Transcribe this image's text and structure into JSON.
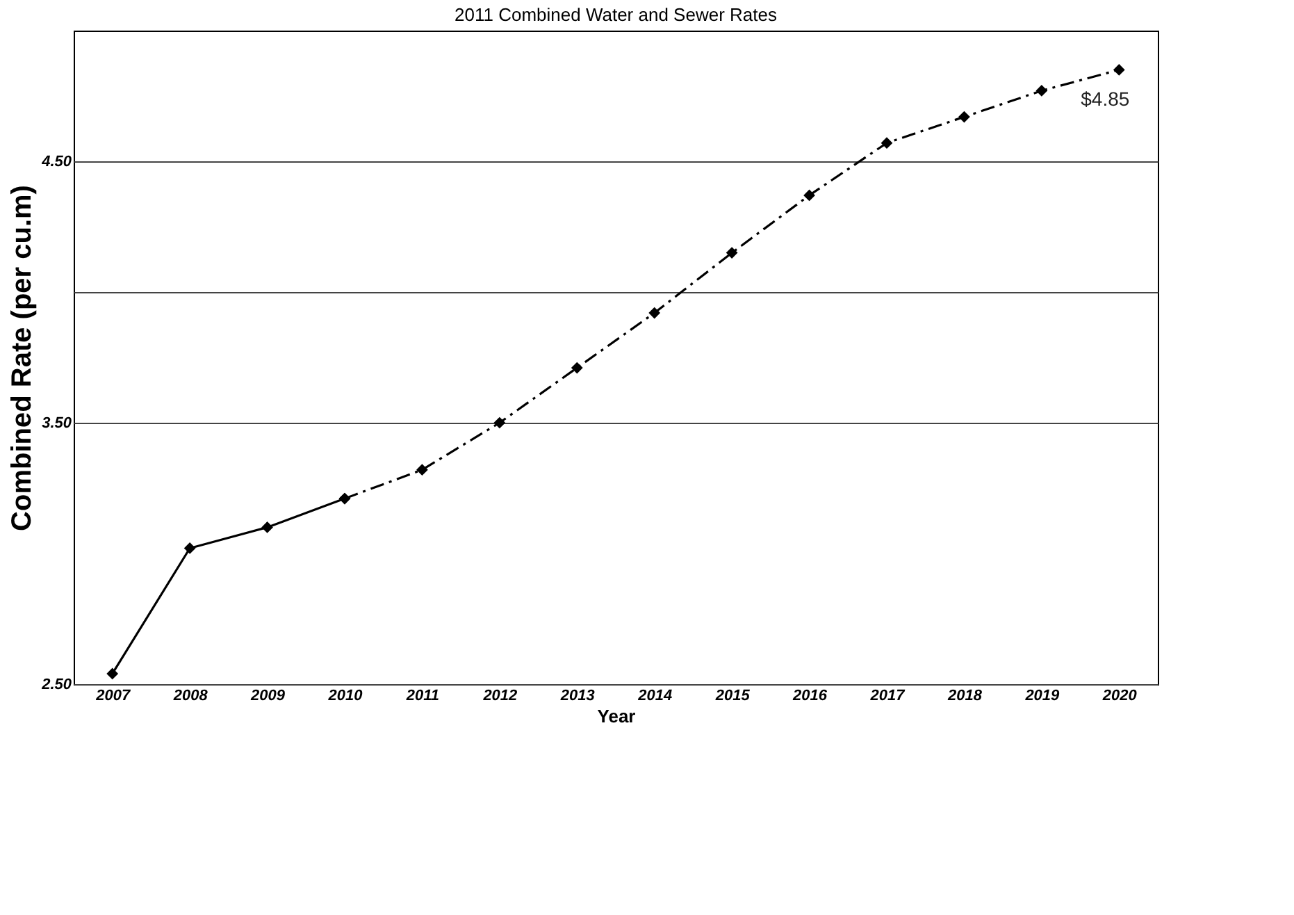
{
  "chart_data": {
    "type": "line",
    "title": "2011 Combined Water and Sewer Rates",
    "xlabel": "Year",
    "ylabel": "Combined Rate (per cu.m)",
    "categories": [
      "2007",
      "2008",
      "2009",
      "2010",
      "2011",
      "2012",
      "2013",
      "2014",
      "2015",
      "2016",
      "2017",
      "2018",
      "2019",
      "2020"
    ],
    "series": [
      {
        "color": "#000000",
        "line_style": "solid",
        "values": [
          2.54,
          3.02,
          3.1,
          3.21,
          null,
          null,
          null,
          null,
          null,
          null,
          null,
          null,
          null,
          null
        ]
      },
      {
        "color": "#000000",
        "line_style": "dashed",
        "values": [
          null,
          null,
          null,
          3.21,
          3.32,
          3.5,
          3.71,
          3.92,
          4.15,
          4.37,
          4.57,
          4.67,
          4.77,
          4.85
        ]
      }
    ],
    "ylim": [
      2.5,
      5.0
    ],
    "yticks": [
      {
        "value": 2.5,
        "label": "2.50"
      },
      {
        "value": 3.5,
        "label": "3.50"
      },
      {
        "value": 4.0,
        "label": null
      },
      {
        "value": 4.5,
        "label": "4.50"
      }
    ],
    "grid": "y",
    "marker": "diamond",
    "annotations": [
      {
        "text": "$4.85",
        "x": "2020",
        "y": 4.85
      }
    ]
  }
}
